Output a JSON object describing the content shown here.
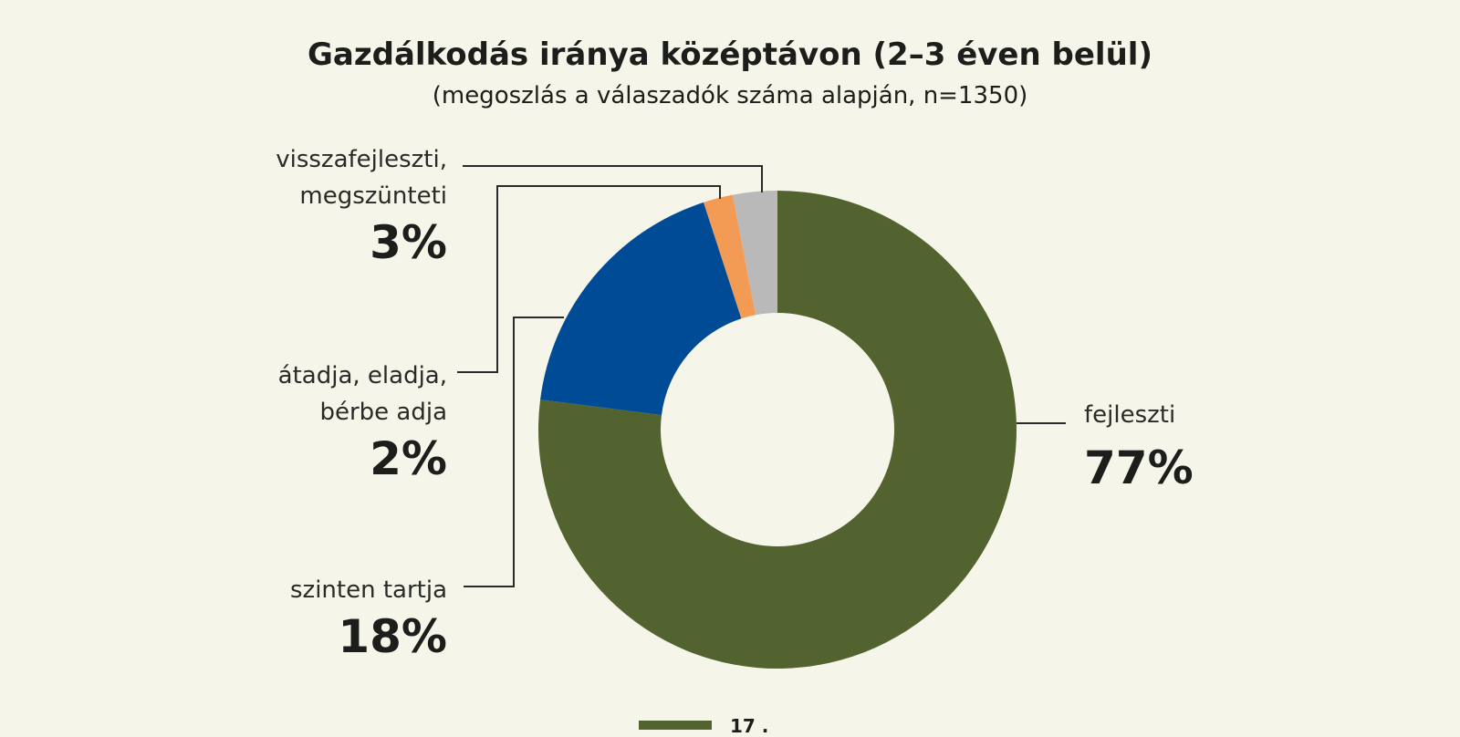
{
  "chart_data": {
    "type": "pie",
    "title": "Gazdálkodás iránya középtávon (2–3 éven belül)",
    "subtitle": "(megoszlás a válaszadók száma alapján, n=1350)",
    "donut": true,
    "slices": [
      {
        "label": "fejleszti",
        "value": 77,
        "display": "77%",
        "color": "#526330"
      },
      {
        "label": "szinten tartja",
        "value": 18,
        "display": "18%",
        "color": "#004b96"
      },
      {
        "label": "átadja, eladja, bérbe adja",
        "label_lines": [
          "átadja, eladja,",
          "bérbe adja"
        ],
        "value": 2,
        "display": "2%",
        "color": "#f39a55"
      },
      {
        "label": "visszafejleszti, megszünteti",
        "label_lines": [
          "visszafejleszti,",
          "megszünteti"
        ],
        "value": 3,
        "display": "3%",
        "color": "#b9b9b9"
      }
    ]
  },
  "legend_fragment": "17 ."
}
